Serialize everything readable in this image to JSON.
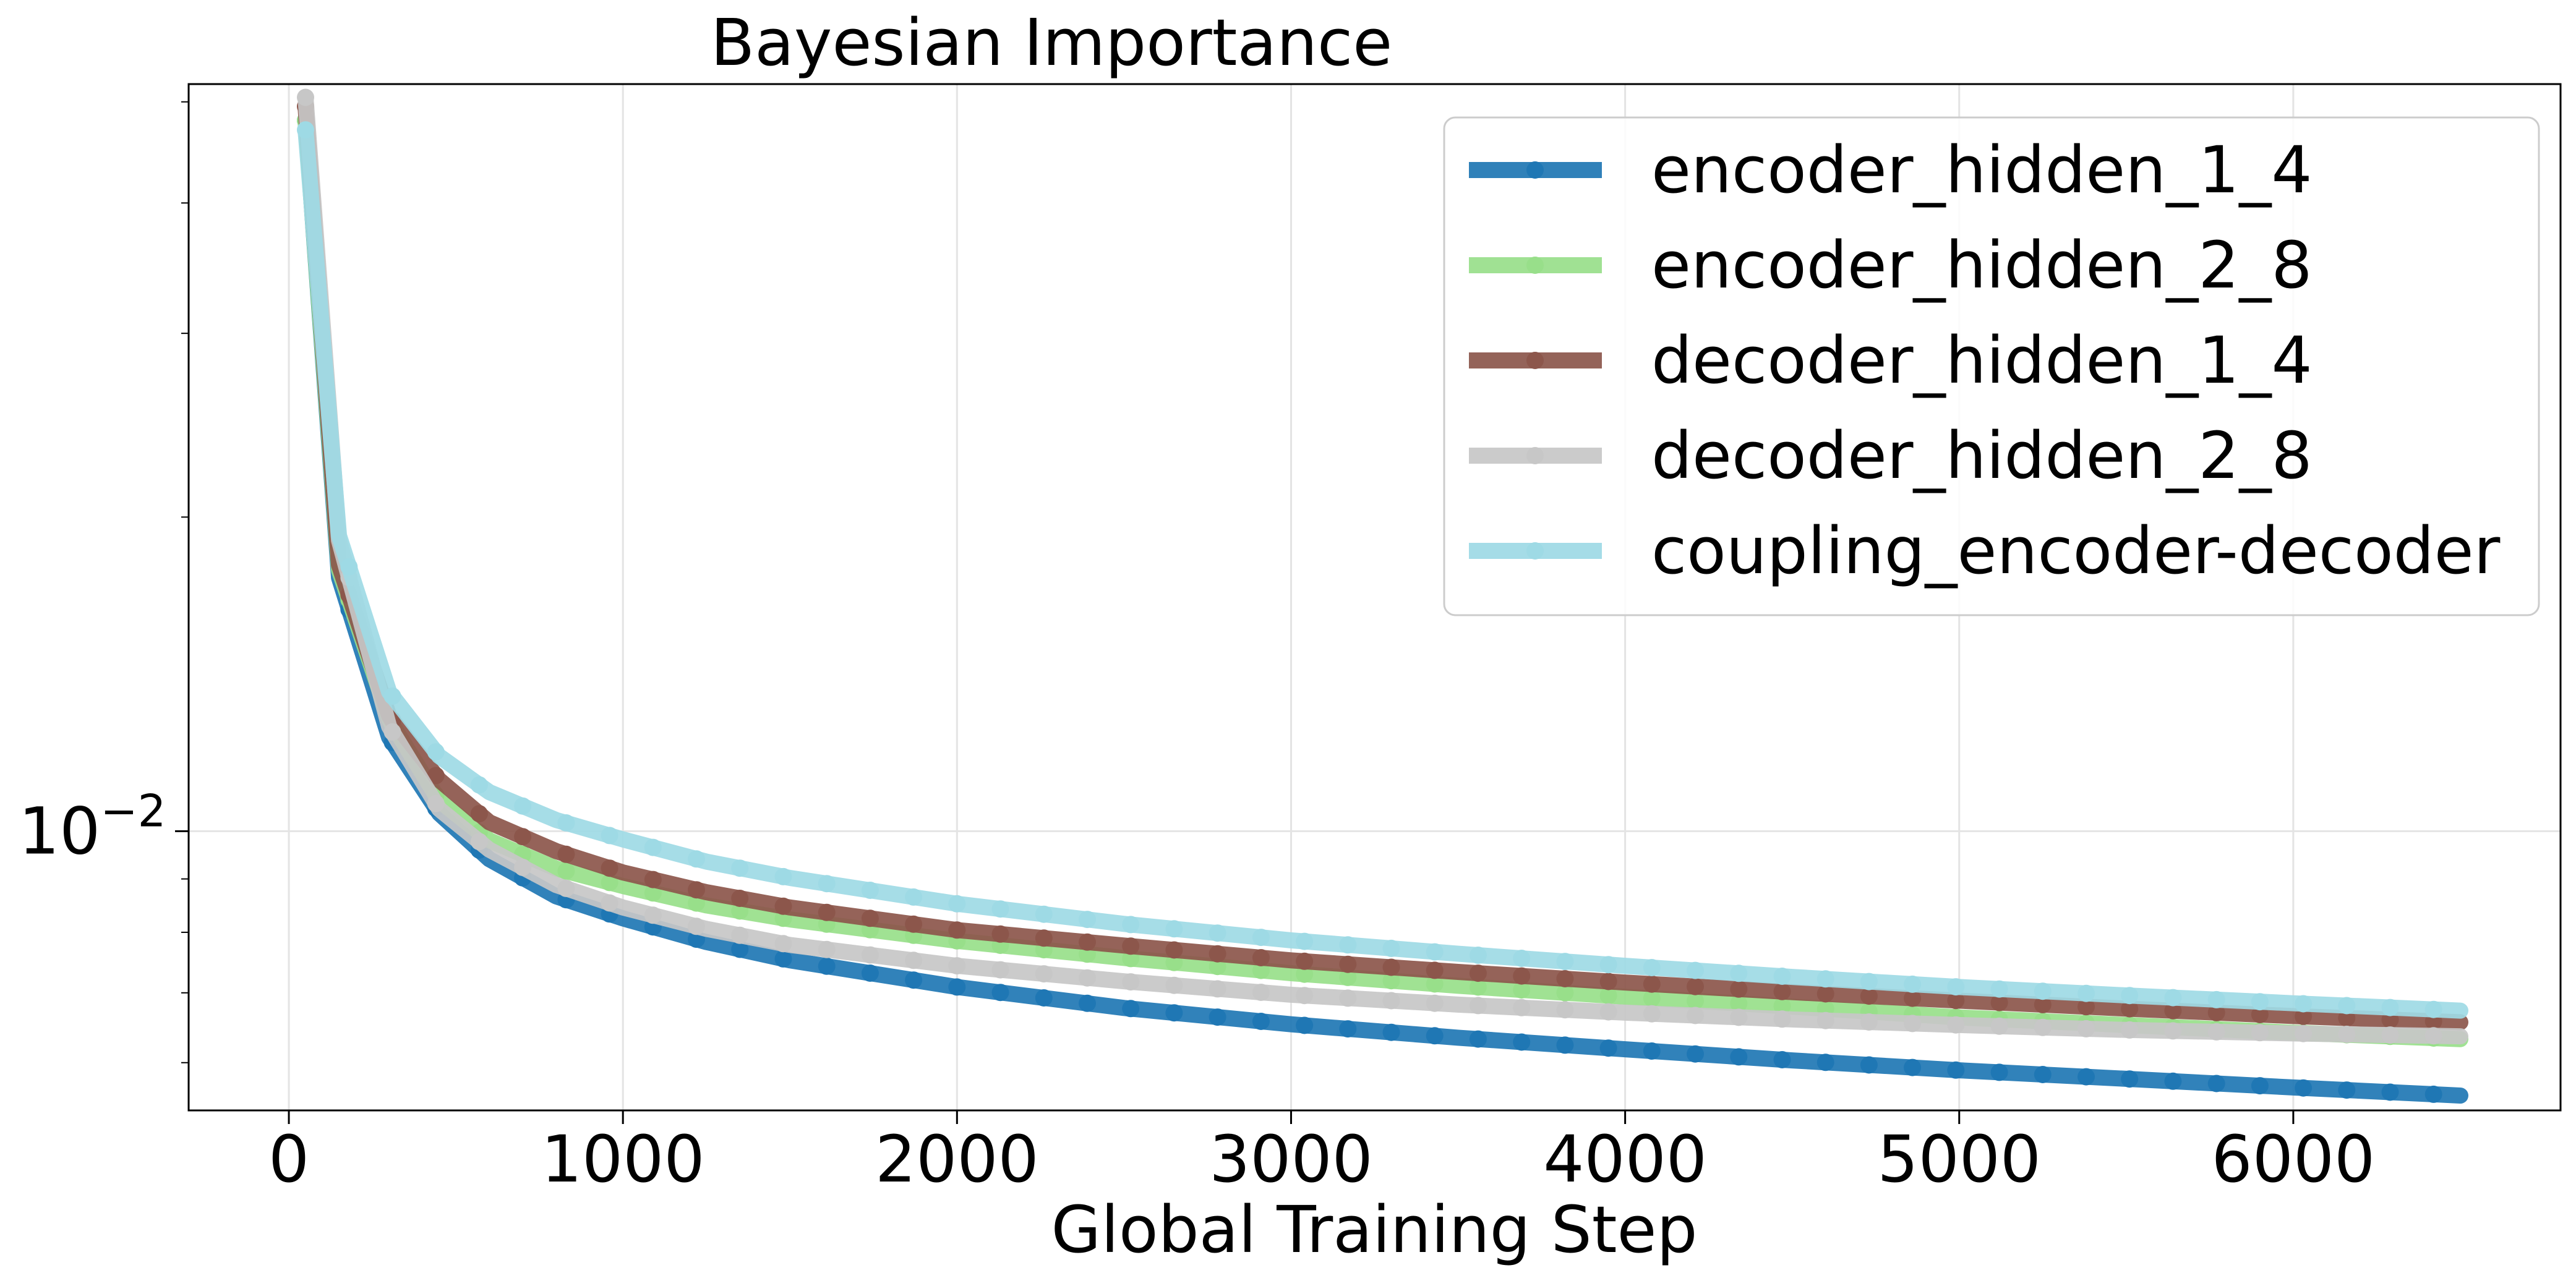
{
  "chart_data": {
    "type": "line",
    "title": "Bayesian Importance",
    "xlabel": "Global Training Step",
    "ylabel": "",
    "yscale": "log",
    "xlim": [
      -300,
      6800
    ],
    "ylim": [
      0.0054,
      0.052
    ],
    "x_ticks": [
      0,
      1000,
      2000,
      3000,
      4000,
      5000,
      6000
    ],
    "x_tick_labels": [
      "0",
      "1000",
      "2000",
      "3000",
      "4000",
      "5000",
      "6000"
    ],
    "y_ticks": [
      0.01
    ],
    "y_tick_label": {
      "base": "10",
      "exponent": "−2"
    },
    "grid": true,
    "legend_position": "top-right",
    "x": [
      50,
      150,
      300,
      450,
      600,
      800,
      1000,
      1250,
      1500,
      2000,
      2500,
      3000,
      3500,
      4000,
      4500,
      5000,
      5500,
      6000,
      6500
    ],
    "series": [
      {
        "name": "encoder_hidden_1_4",
        "color": "#1f77b4",
        "values": [
          0.048,
          0.0175,
          0.0123,
          0.0104,
          0.0094,
          0.00866,
          0.00825,
          0.00783,
          0.00752,
          0.00709,
          0.00677,
          0.00653,
          0.00634,
          0.00618,
          0.00603,
          0.0059,
          0.00579,
          0.00568,
          0.00558
        ]
      },
      {
        "name": "encoder_hidden_2_8",
        "color": "#98df8a",
        "values": [
          0.048,
          0.0178,
          0.0128,
          0.0107,
          0.0098,
          0.00921,
          0.00886,
          0.00849,
          0.00823,
          0.00785,
          0.00756,
          0.00731,
          0.00711,
          0.00694,
          0.00679,
          0.00663,
          0.00652,
          0.00641,
          0.00632
        ]
      },
      {
        "name": "decoder_hidden_1_4",
        "color": "#8c564b",
        "values": [
          0.0495,
          0.018,
          0.0129,
          0.0112,
          0.0102,
          0.00957,
          0.00913,
          0.00874,
          0.00845,
          0.00804,
          0.00777,
          0.00752,
          0.00733,
          0.00716,
          0.00701,
          0.00688,
          0.00676,
          0.00665,
          0.00656
        ]
      },
      {
        "name": "decoder_hidden_2_8",
        "color": "#c7c7c7",
        "values": [
          0.0505,
          0.019,
          0.0126,
          0.0105,
          0.0096,
          0.00888,
          0.00845,
          0.00806,
          0.00778,
          0.00743,
          0.00718,
          0.00697,
          0.00682,
          0.0067,
          0.0066,
          0.00652,
          0.00645,
          0.0064,
          0.00636
        ]
      },
      {
        "name": "coupling_encoder-decoder",
        "color": "#9edae5",
        "values": [
          0.047,
          0.0192,
          0.0136,
          0.0118,
          0.0109,
          0.01025,
          0.00982,
          0.00935,
          0.00902,
          0.00852,
          0.00815,
          0.00786,
          0.00763,
          0.00743,
          0.00725,
          0.00709,
          0.00696,
          0.00684,
          0.00673
        ]
      }
    ]
  }
}
